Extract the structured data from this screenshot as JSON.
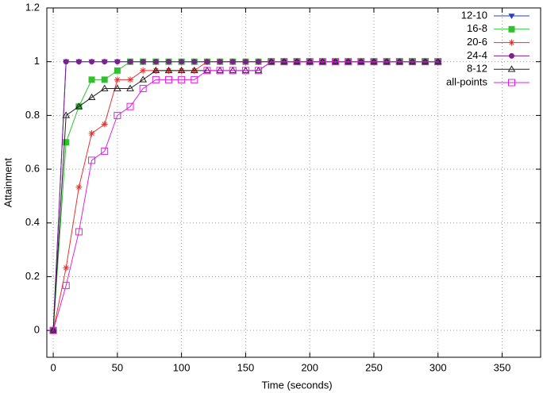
{
  "chart_data": {
    "type": "line",
    "xlabel": "Time (seconds)",
    "ylabel": "Attainment",
    "x": [
      0,
      10,
      20,
      30,
      40,
      50,
      60,
      70,
      80,
      90,
      100,
      110,
      120,
      130,
      140,
      150,
      160,
      170,
      180,
      190,
      200,
      210,
      220,
      230,
      240,
      250,
      260,
      270,
      280,
      290,
      300
    ],
    "xlim": [
      -5,
      380
    ],
    "ylim": [
      -0.1,
      1.2
    ],
    "xticks": [
      0,
      50,
      100,
      150,
      200,
      250,
      300,
      350
    ],
    "yticks": [
      0,
      0.2,
      0.4,
      0.6,
      0.8,
      1,
      1.2
    ],
    "grid": true,
    "legend": "top-right",
    "series": [
      {
        "name": "12-10",
        "color": "#1f3fd9",
        "marker": "triangle-down-filled",
        "values": [
          0,
          1,
          1,
          1,
          1,
          1,
          1,
          1,
          1,
          1,
          1,
          1,
          1,
          1,
          1,
          1,
          1,
          1,
          1,
          1,
          1,
          1,
          1,
          1,
          1,
          1,
          1,
          1,
          1,
          1,
          1
        ]
      },
      {
        "name": "16-8",
        "color": "#2fc02f",
        "marker": "square-filled",
        "values": [
          0,
          0.7,
          0.833,
          0.933,
          0.933,
          0.967,
          1,
          1,
          1,
          1,
          1,
          1,
          1,
          1,
          1,
          1,
          1,
          1,
          1,
          1,
          1,
          1,
          1,
          1,
          1,
          1,
          1,
          1,
          1,
          1,
          1
        ]
      },
      {
        "name": "20-6",
        "color": "#e8322f",
        "marker": "star",
        "values": [
          0,
          0.233,
          0.533,
          0.733,
          0.767,
          0.933,
          0.933,
          0.967,
          0.967,
          0.967,
          0.967,
          0.967,
          1,
          1,
          1,
          1,
          1,
          1,
          1,
          1,
          1,
          1,
          1,
          1,
          1,
          1,
          1,
          1,
          1,
          1,
          1
        ]
      },
      {
        "name": "24-4",
        "color": "#7f1f8f",
        "marker": "circle-filled",
        "values": [
          0,
          1,
          1,
          1,
          1,
          1,
          1,
          1,
          1,
          1,
          1,
          1,
          1,
          1,
          1,
          1,
          1,
          1,
          1,
          1,
          1,
          1,
          1,
          1,
          1,
          1,
          1,
          1,
          1,
          1,
          1
        ]
      },
      {
        "name": "8-12",
        "color": "#222222",
        "marker": "triangle-open",
        "values": [
          0,
          0.8,
          0.833,
          0.867,
          0.9,
          0.9,
          0.9,
          0.933,
          0.967,
          0.967,
          0.967,
          0.967,
          0.967,
          0.967,
          0.967,
          0.967,
          0.967,
          1,
          1,
          1,
          1,
          1,
          1,
          1,
          1,
          1,
          1,
          1,
          1,
          1,
          1
        ]
      },
      {
        "name": "all-points",
        "color": "#e020e0",
        "marker": "square-open",
        "values": [
          0,
          0.167,
          0.367,
          0.633,
          0.667,
          0.8,
          0.833,
          0.9,
          0.933,
          0.933,
          0.933,
          0.933,
          0.967,
          0.967,
          0.967,
          0.967,
          0.967,
          1,
          1,
          1,
          1,
          1,
          1,
          1,
          1,
          1,
          1,
          1,
          1,
          1,
          1
        ]
      }
    ]
  }
}
